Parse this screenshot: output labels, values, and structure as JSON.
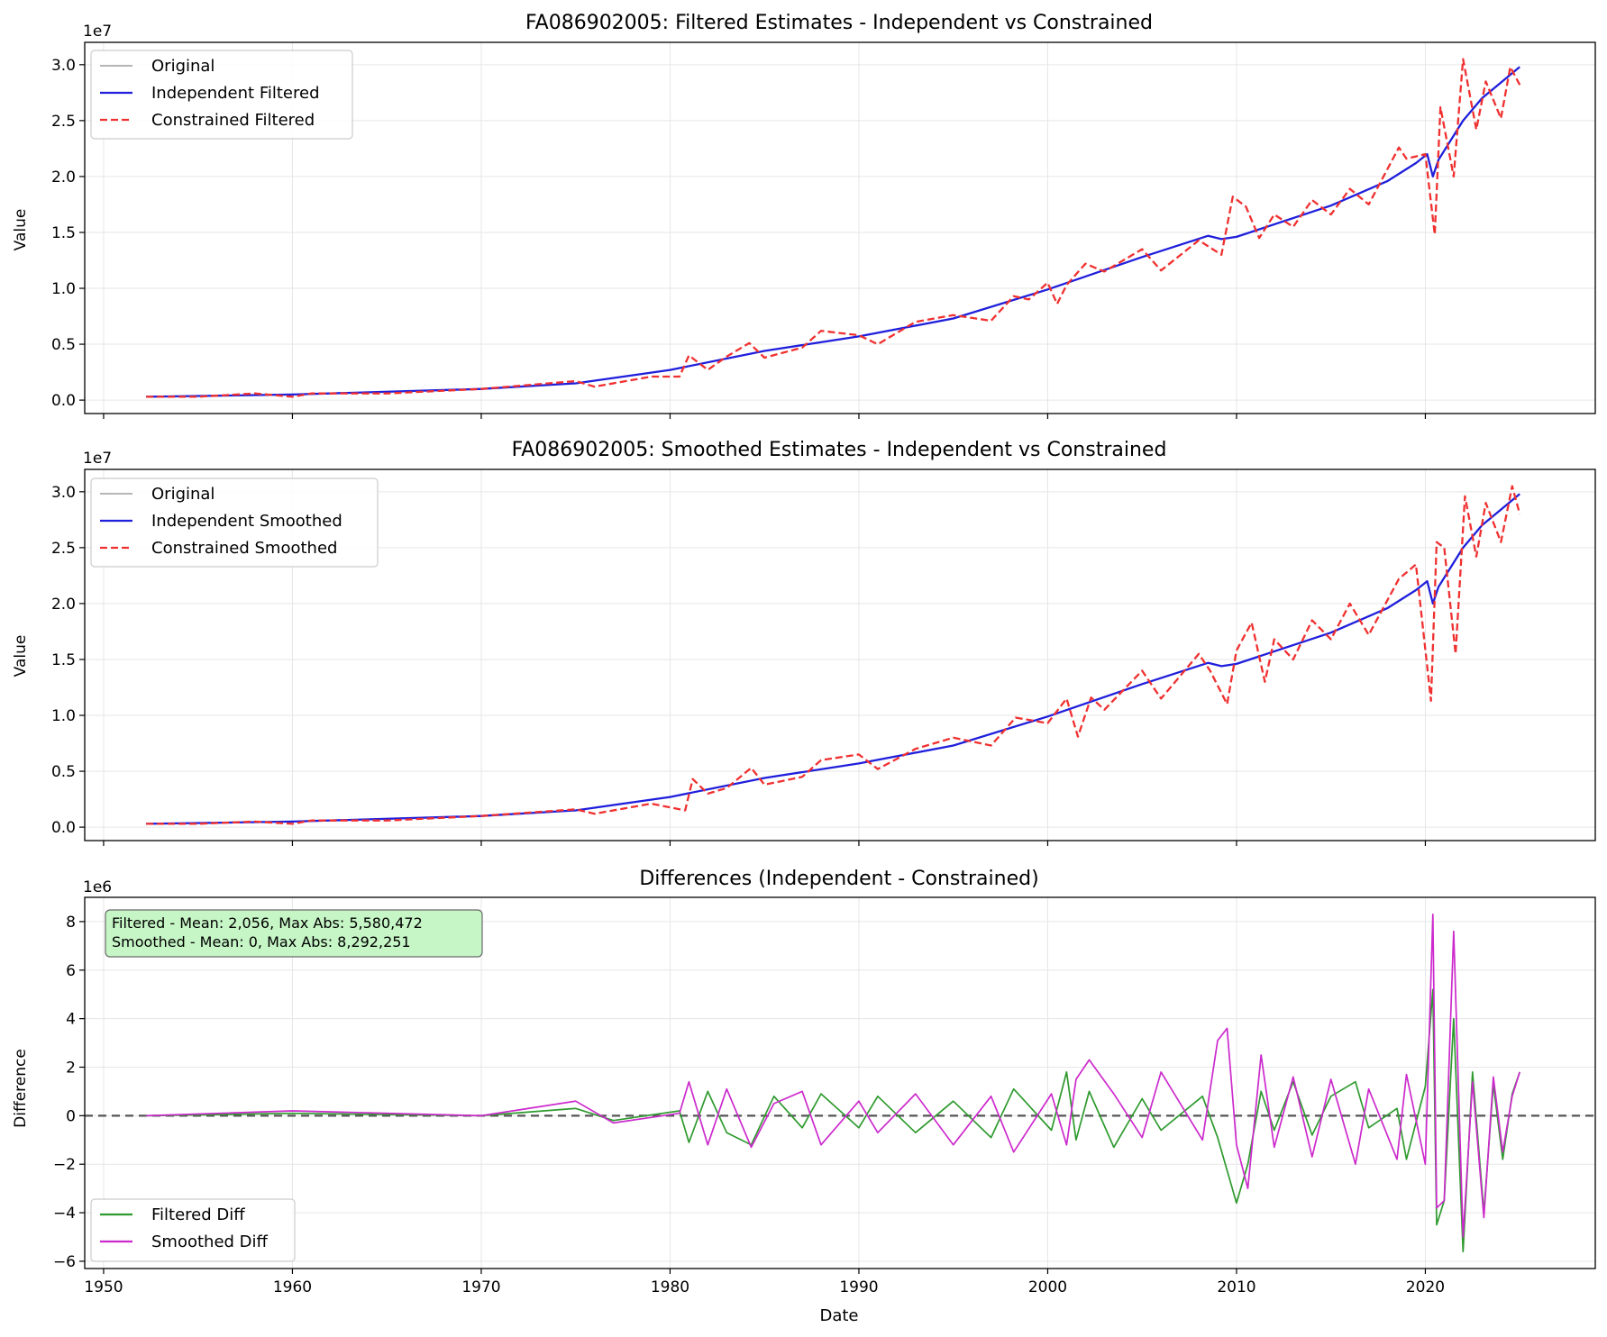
{
  "figure": {
    "xlabel": "Date",
    "x_ticks": [
      1950,
      1960,
      1970,
      1980,
      1990,
      2000,
      2010,
      2020
    ],
    "colors": {
      "original": "#8c8c8c",
      "independent": "#1f1fdc",
      "constrained": "#f03030",
      "filtered_diff": "#2e9a2e",
      "smoothed_diff": "#cc2acc",
      "stats_box": "#c6f5c6"
    }
  },
  "chart_data": [
    {
      "type": "line",
      "title": "FA086902005: Filtered Estimates - Independent vs Constrained",
      "xlabel": "",
      "ylabel": "Value",
      "y_exponent": "1e7",
      "xlim": [
        1949,
        2029
      ],
      "ylim": [
        -0.12,
        3.2
      ],
      "y_ticks": [
        "0.0",
        "0.5",
        "1.0",
        "1.5",
        "2.0",
        "2.5",
        "3.0"
      ],
      "y_tick_values": [
        0,
        0.5,
        1.0,
        1.5,
        2.0,
        2.5,
        3.0
      ],
      "legend": "top-left",
      "grid": true,
      "series": [
        {
          "name": "Original",
          "style": "solid-thin",
          "color": "#8c8c8c",
          "x": [
            1952.25,
            1960,
            1970,
            1975,
            1980,
            1985,
            1990,
            1995,
            2000,
            2005,
            2008.5,
            2009.2,
            2010,
            2015,
            2018,
            2019.5,
            2020.1,
            2020.4,
            2020.7,
            2022,
            2023,
            2025
          ],
          "y": [
            0.03,
            0.05,
            0.1,
            0.15,
            0.27,
            0.44,
            0.57,
            0.73,
            0.99,
            1.28,
            1.47,
            1.44,
            1.46,
            1.74,
            1.96,
            2.12,
            2.2,
            2.0,
            2.15,
            2.5,
            2.7,
            2.98
          ]
        },
        {
          "name": "Independent Filtered",
          "style": "solid",
          "color": "#1f1fdc",
          "x": [
            1952.25,
            1960,
            1970,
            1975,
            1980,
            1985,
            1990,
            1995,
            2000,
            2005,
            2008.5,
            2009.2,
            2010,
            2015,
            2018,
            2019.5,
            2020.1,
            2020.4,
            2020.7,
            2022,
            2023,
            2025
          ],
          "y": [
            0.03,
            0.05,
            0.1,
            0.15,
            0.27,
            0.44,
            0.57,
            0.73,
            0.99,
            1.28,
            1.47,
            1.44,
            1.46,
            1.74,
            1.96,
            2.12,
            2.2,
            2.0,
            2.15,
            2.5,
            2.7,
            2.98
          ]
        },
        {
          "name": "Constrained Filtered",
          "style": "dashed",
          "color": "#f03030",
          "x": [
            1952.25,
            1955,
            1958,
            1960,
            1961,
            1965,
            1970,
            1975,
            1976,
            1979,
            1980.5,
            1981,
            1982,
            1983,
            1984.2,
            1985,
            1987,
            1988,
            1990,
            1991,
            1993,
            1995,
            1997,
            1998.2,
            1999,
            2000,
            2000.5,
            2001,
            2002,
            2003,
            2005,
            2006,
            2008,
            2009.2,
            2009.8,
            2010.5,
            2011.2,
            2012,
            2013,
            2014,
            2015,
            2016,
            2017,
            2018.6,
            2019,
            2020,
            2020.5,
            2020.8,
            2021.5,
            2022,
            2022.7,
            2023.2,
            2024,
            2024.5,
            2025
          ],
          "y": [
            0.03,
            0.03,
            0.06,
            0.03,
            0.06,
            0.06,
            0.1,
            0.17,
            0.12,
            0.21,
            0.21,
            0.4,
            0.27,
            0.39,
            0.51,
            0.38,
            0.47,
            0.62,
            0.58,
            0.5,
            0.7,
            0.76,
            0.71,
            0.93,
            0.9,
            1.05,
            0.86,
            1.03,
            1.22,
            1.15,
            1.35,
            1.16,
            1.43,
            1.3,
            1.82,
            1.73,
            1.45,
            1.66,
            1.55,
            1.79,
            1.66,
            1.89,
            1.75,
            2.26,
            2.16,
            2.2,
            1.48,
            2.62,
            2.0,
            3.05,
            2.42,
            2.85,
            2.52,
            2.98,
            2.82
          ]
        }
      ]
    },
    {
      "type": "line",
      "title": "FA086902005: Smoothed Estimates - Independent vs Constrained",
      "xlabel": "",
      "ylabel": "Value",
      "y_exponent": "1e7",
      "xlim": [
        1949,
        2029
      ],
      "ylim": [
        -0.12,
        3.2
      ],
      "y_ticks": [
        "0.0",
        "0.5",
        "1.0",
        "1.5",
        "2.0",
        "2.5",
        "3.0"
      ],
      "y_tick_values": [
        0,
        0.5,
        1.0,
        1.5,
        2.0,
        2.5,
        3.0
      ],
      "legend": "top-left",
      "grid": true,
      "series": [
        {
          "name": "Original",
          "style": "solid-thin",
          "color": "#8c8c8c",
          "x": [
            1952.25,
            1960,
            1970,
            1975,
            1980,
            1985,
            1990,
            1995,
            2000,
            2005,
            2008.5,
            2009.2,
            2010,
            2015,
            2018,
            2019.5,
            2020.1,
            2020.4,
            2020.7,
            2022,
            2023,
            2025
          ],
          "y": [
            0.03,
            0.05,
            0.1,
            0.15,
            0.27,
            0.44,
            0.57,
            0.73,
            0.99,
            1.28,
            1.47,
            1.44,
            1.46,
            1.74,
            1.96,
            2.12,
            2.2,
            2.0,
            2.15,
            2.5,
            2.7,
            2.98
          ]
        },
        {
          "name": "Independent Smoothed",
          "style": "solid",
          "color": "#1f1fdc",
          "x": [
            1952.25,
            1960,
            1970,
            1975,
            1980,
            1985,
            1990,
            1995,
            2000,
            2005,
            2008.5,
            2009.2,
            2010,
            2015,
            2018,
            2019.5,
            2020.1,
            2020.4,
            2020.7,
            2022,
            2023,
            2025
          ],
          "y": [
            0.03,
            0.05,
            0.1,
            0.15,
            0.27,
            0.44,
            0.57,
            0.73,
            0.99,
            1.28,
            1.47,
            1.44,
            1.46,
            1.74,
            1.96,
            2.12,
            2.2,
            2.0,
            2.15,
            2.5,
            2.7,
            2.98
          ]
        },
        {
          "name": "Constrained Smoothed",
          "style": "dashed",
          "color": "#f03030",
          "x": [
            1952.25,
            1955,
            1958,
            1960,
            1961,
            1965,
            1970,
            1975,
            1976,
            1979,
            1980.8,
            1981.2,
            1982,
            1983,
            1984.3,
            1985,
            1987,
            1988,
            1990,
            1991,
            1993,
            1995,
            1997,
            1998.3,
            2000,
            2001,
            2001.6,
            2002.3,
            2003,
            2005,
            2006,
            2008,
            2008.6,
            2009.5,
            2010,
            2010.8,
            2011.5,
            2012,
            2013,
            2014,
            2015,
            2016,
            2017,
            2018.6,
            2019.5,
            2020.3,
            2020.6,
            2021,
            2021.6,
            2022.1,
            2022.7,
            2023.2,
            2024,
            2024.6,
            2025
          ],
          "y": [
            0.03,
            0.03,
            0.05,
            0.03,
            0.06,
            0.06,
            0.1,
            0.16,
            0.12,
            0.21,
            0.15,
            0.43,
            0.3,
            0.35,
            0.53,
            0.38,
            0.45,
            0.6,
            0.65,
            0.52,
            0.7,
            0.8,
            0.73,
            0.98,
            0.93,
            1.15,
            0.81,
            1.16,
            1.05,
            1.4,
            1.15,
            1.55,
            1.4,
            1.1,
            1.58,
            1.83,
            1.3,
            1.68,
            1.5,
            1.85,
            1.68,
            2.0,
            1.72,
            2.22,
            2.35,
            1.13,
            2.55,
            2.5,
            1.55,
            2.96,
            2.42,
            2.9,
            2.55,
            3.05,
            2.8
          ]
        }
      ]
    },
    {
      "type": "line",
      "title": "Differences (Independent - Constrained)",
      "xlabel": "Date",
      "ylabel": "Difference",
      "y_exponent": "1e6",
      "xlim": [
        1949,
        2029
      ],
      "ylim": [
        -6.3,
        9.0
      ],
      "y_ticks": [
        "−6",
        "−4",
        "−2",
        "0",
        "2",
        "4",
        "6",
        "8"
      ],
      "y_tick_values": [
        -6,
        -4,
        -2,
        0,
        2,
        4,
        6,
        8
      ],
      "legend": "bottom-left",
      "grid": true,
      "zero_line": true,
      "annotation": [
        "Filtered - Mean: 2,056, Max Abs: 5,580,472",
        "Smoothed - Mean: 0, Max Abs: 8,292,251"
      ],
      "series": [
        {
          "name": "Filtered Diff",
          "style": "solid",
          "color": "#2e9a2e",
          "x": [
            1952.25,
            1960,
            1970,
            1975,
            1977,
            1980.5,
            1981,
            1982,
            1983,
            1984.3,
            1985.5,
            1987,
            1988,
            1990,
            1991,
            1993,
            1995,
            1997,
            1998.2,
            2000.2,
            2001,
            2001.5,
            2002.2,
            2003.5,
            2005,
            2006,
            2008.2,
            2009,
            2010,
            2010.6,
            2011.3,
            2012,
            2013,
            2014,
            2015,
            2016.3,
            2017,
            2018.5,
            2019,
            2020,
            2020.4,
            2020.6,
            2021,
            2021.5,
            2022,
            2022.5,
            2023.1,
            2023.6,
            2024.1,
            2024.6,
            2025
          ],
          "y": [
            0,
            0.1,
            0,
            0.3,
            -0.2,
            0.2,
            -1.1,
            1.0,
            -0.7,
            -1.2,
            0.8,
            -0.5,
            0.9,
            -0.5,
            0.8,
            -0.7,
            0.6,
            -0.9,
            1.1,
            -0.6,
            1.8,
            -1.0,
            1.0,
            -1.3,
            0.7,
            -0.6,
            0.8,
            -0.9,
            -3.6,
            -2.0,
            1.0,
            -0.6,
            1.4,
            -0.8,
            0.8,
            1.4,
            -0.5,
            0.3,
            -1.8,
            1.2,
            5.2,
            -4.5,
            -3.5,
            4.0,
            -5.6,
            1.8,
            -4.0,
            1.3,
            -1.8,
            0.9,
            1.8
          ]
        },
        {
          "name": "Smoothed Diff",
          "style": "solid",
          "color": "#cc2acc",
          "x": [
            1952.25,
            1960,
            1970,
            1975,
            1977,
            1980.5,
            1981,
            1982,
            1983,
            1984.3,
            1985.5,
            1987,
            1988,
            1990,
            1991,
            1993,
            1995,
            1997,
            1998.2,
            2000.2,
            2001,
            2001.5,
            2002.2,
            2003.5,
            2005,
            2006,
            2008.2,
            2009,
            2009.5,
            2010,
            2010.6,
            2011.3,
            2012,
            2013,
            2014,
            2015,
            2016.3,
            2017,
            2018.5,
            2019,
            2020,
            2020.4,
            2020.6,
            2021,
            2021.5,
            2022,
            2022.5,
            2023.1,
            2023.6,
            2024.1,
            2024.6,
            2025
          ],
          "y": [
            0,
            0.2,
            0,
            0.6,
            -0.3,
            0.1,
            1.4,
            -1.2,
            1.1,
            -1.3,
            0.5,
            1.0,
            -1.2,
            0.6,
            -0.7,
            0.9,
            -1.2,
            0.8,
            -1.5,
            0.9,
            -1.2,
            1.5,
            2.3,
            0.9,
            -0.9,
            1.8,
            -1.0,
            3.1,
            3.6,
            -1.2,
            -3.0,
            2.5,
            -1.3,
            1.6,
            -1.7,
            1.5,
            -2.0,
            1.1,
            -1.8,
            1.7,
            -2.0,
            8.3,
            -3.8,
            -3.5,
            7.6,
            -5.0,
            1.4,
            -4.2,
            1.6,
            -1.5,
            0.8,
            1.8
          ]
        }
      ]
    }
  ]
}
